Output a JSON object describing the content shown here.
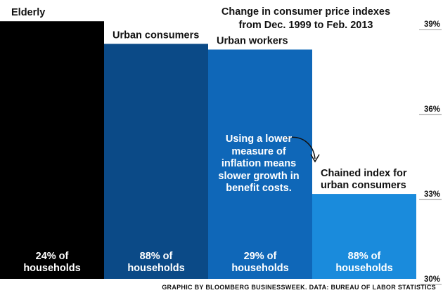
{
  "chart_data": {
    "type": "bar",
    "title": "Change in consumer price indexes",
    "subtitle": "from Dec. 1999 to Feb. 2013",
    "categories": [
      "Elderly",
      "Urban consumers",
      "Urban workers",
      "Chained index for urban consumers"
    ],
    "category_lines": [
      [
        "Elderly"
      ],
      [
        "Urban consumers"
      ],
      [
        "Urban workers"
      ],
      [
        "Chained index for",
        "urban consumers"
      ]
    ],
    "values": [
      39.1,
      38.3,
      38.1,
      33.0
    ],
    "bar_labels": [
      [
        "24% of",
        "households"
      ],
      [
        "88% of",
        "households"
      ],
      [
        "29% of",
        "households"
      ],
      [
        "88% of",
        "households"
      ]
    ],
    "bar_colors": [
      "#000000",
      "#0b4a87",
      "#0f67b8",
      "#1a8bdc"
    ],
    "ylim": [
      30,
      39.8
    ],
    "yticks": [
      30,
      33,
      36,
      39
    ],
    "ytick_labels": [
      "30%",
      "33%",
      "36%",
      "39%"
    ],
    "ylabel": "",
    "xlabel": "",
    "grid": false,
    "axis_side": "right",
    "annotation": {
      "lines": [
        "Using a lower",
        "measure of",
        "inflation means",
        "slower growth in",
        "benefit costs."
      ]
    },
    "source": "GRAPHIC BY BLOOMBERG BUSINESSWEEK. DATA: BUREAU OF LABOR STATISTICS"
  }
}
